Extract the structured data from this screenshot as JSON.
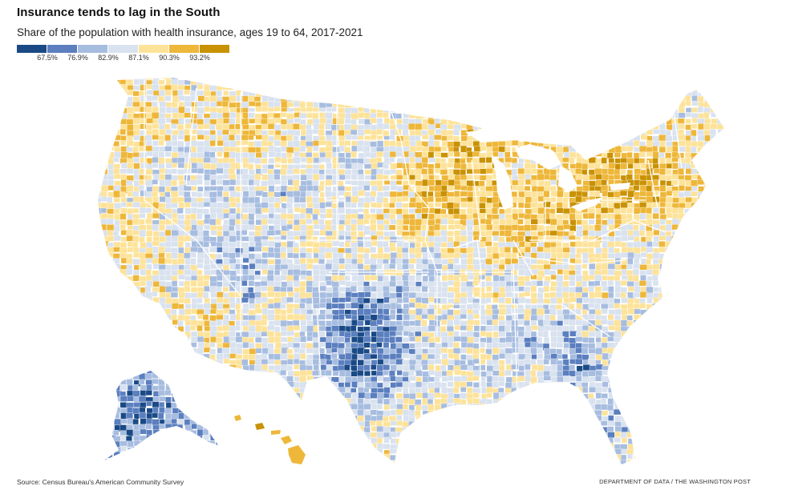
{
  "title": "Insurance tends to lag in the South",
  "subtitle": "Share of the population with health insurance, ages 19 to 64, 2017-2021",
  "legend": {
    "colors": [
      "#1a4a86",
      "#5b7fbf",
      "#a7bde0",
      "#d9e2ef",
      "#fde39a",
      "#eeb73a",
      "#c99205"
    ],
    "ticks": [
      "67.5%",
      "76.9%",
      "82.9%",
      "87.1%",
      "90.3%",
      "93.2%"
    ]
  },
  "map": {
    "region": "United States counties",
    "palette": {
      "dark_blue": "#1a4a86",
      "mid_blue": "#5b7fbf",
      "light_blue": "#a7bde0",
      "pale_blue": "#d9e2ef",
      "pale_yellow": "#fde39a",
      "gold": "#eeb73a",
      "dark_gold": "#c99205",
      "state_border": "#ffffff"
    }
  },
  "footer": {
    "source": "Source: Census Bureau's American Community Survey",
    "credit": "DEPARTMENT OF DATA / THE WASHINGTON POST"
  }
}
